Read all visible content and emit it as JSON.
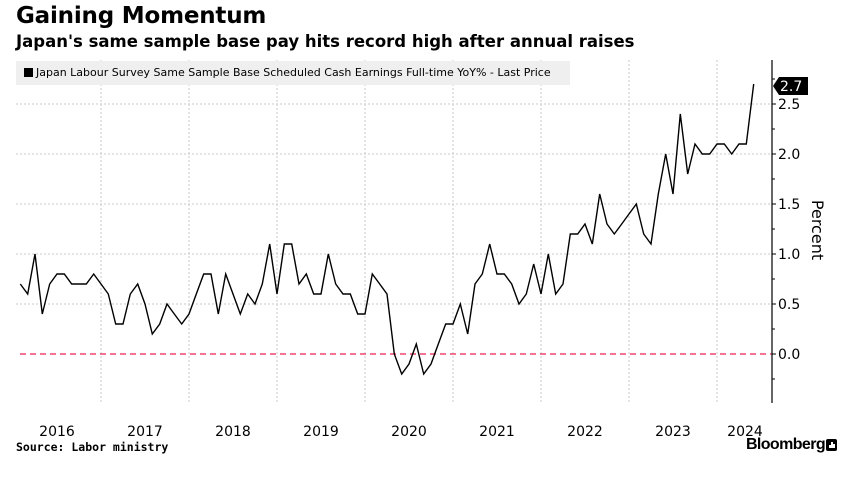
{
  "header": {
    "title": "Gaining Momentum",
    "subtitle": "Japan's same sample base pay hits record high after annual raises"
  },
  "legend": {
    "label": "Japan Labour Survey Same Sample Base Scheduled Cash Earnings Full-time YoY% - Last Price"
  },
  "footer": {
    "source": "Source: Labor ministry",
    "brand": "Bloomberg"
  },
  "colors": {
    "line": "#000000",
    "zero_line": "#f0476e",
    "grid": "#c8c8c8",
    "legend_bg": "#efefef",
    "last_price_bg": "#000000"
  },
  "chart_data": {
    "type": "line",
    "title": "Gaining Momentum",
    "subtitle": "Japan's same sample base pay hits record high after annual raises",
    "xlabel": "",
    "ylabel": "Percent",
    "y_axis_side": "right",
    "ylim": [
      -0.45,
      2.95
    ],
    "yticks": [
      0.0,
      0.5,
      1.0,
      1.5,
      2.0,
      2.5
    ],
    "ytick_labels": [
      "0.0",
      "0.5",
      "1.0",
      "1.5",
      "2.0",
      "2.5"
    ],
    "xtick_labels": [
      "2016",
      "2017",
      "2018",
      "2019",
      "2020",
      "2021",
      "2022",
      "2023",
      "2024"
    ],
    "x_start": "2016-02",
    "x_end": "2024-06",
    "frequency": "monthly",
    "grid": true,
    "reference_line": {
      "value": 0.0,
      "style": "dashed"
    },
    "last_value_label": "2.7",
    "legend_position": "top-left",
    "series": [
      {
        "name": "Japan Labour Survey Same Sample Base Scheduled Cash Earnings Full-time YoY% - Last Price",
        "values": [
          0.7,
          0.6,
          1.0,
          0.4,
          0.7,
          0.8,
          0.8,
          0.7,
          0.7,
          0.7,
          0.8,
          0.7,
          0.6,
          0.3,
          0.3,
          0.6,
          0.7,
          0.5,
          0.2,
          0.3,
          0.5,
          0.4,
          0.3,
          0.4,
          0.6,
          0.8,
          0.8,
          0.4,
          0.8,
          0.6,
          0.4,
          0.6,
          0.5,
          0.7,
          1.1,
          0.6,
          1.1,
          1.1,
          0.7,
          0.8,
          0.6,
          0.6,
          1.0,
          0.7,
          0.6,
          0.6,
          0.4,
          0.4,
          0.8,
          0.7,
          0.6,
          0.0,
          -0.2,
          -0.1,
          0.1,
          -0.2,
          -0.1,
          0.1,
          0.3,
          0.3,
          0.5,
          0.2,
          0.7,
          0.8,
          1.1,
          0.8,
          0.8,
          0.7,
          0.5,
          0.6,
          0.9,
          0.6,
          1.0,
          0.6,
          0.7,
          1.2,
          1.2,
          1.3,
          1.1,
          1.6,
          1.3,
          1.2,
          1.3,
          1.4,
          1.5,
          1.2,
          1.1,
          1.6,
          2.0,
          1.6,
          2.4,
          1.8,
          2.1,
          2.0,
          2.0,
          2.1,
          2.1,
          2.0,
          2.1,
          2.1,
          2.7
        ]
      }
    ]
  }
}
